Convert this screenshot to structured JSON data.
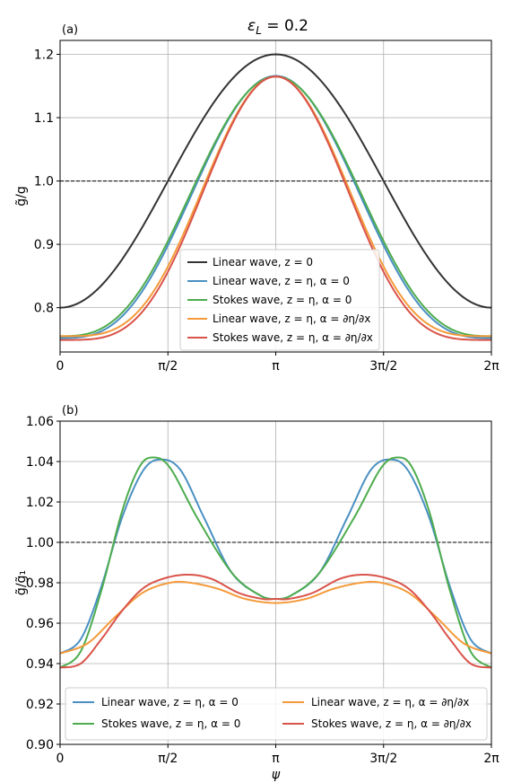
{
  "title": "ε_L = 0.2",
  "colors": {
    "black": "#333333",
    "blue": "#4a90c2",
    "green": "#4dac4d",
    "orange": "#f59a3a",
    "red": "#d9534a"
  },
  "chart_data": [
    {
      "type": "line",
      "panel_label": "(a)",
      "ylabel": "g̃/g",
      "xlabel": "",
      "xlim": [
        0,
        6.2832
      ],
      "ylim": [
        0.73,
        1.222
      ],
      "x_ticks": [
        0,
        1.5708,
        3.1416,
        4.7124,
        6.2832
      ],
      "x_tick_labels": [
        "0",
        "π/2",
        "π",
        "3π/2",
        "2π"
      ],
      "y_ticks": [
        0.8,
        0.9,
        1.0,
        1.1,
        1.2
      ],
      "y_tick_labels": [
        "0.8",
        "0.9",
        "1.0",
        "1.1",
        "1.2"
      ],
      "grid": true,
      "reference_line": 1.0,
      "legend_position": "lower-center",
      "legend_columns": 1,
      "series": [
        {
          "name": "Linear wave, z = 0",
          "color_key": "black",
          "model": "linear0"
        },
        {
          "name": "Linear wave, z = η, α = 0",
          "color_key": "blue",
          "model": "linA"
        },
        {
          "name": "Stokes wave, z = η, α = 0",
          "color_key": "green",
          "model": "stokesA"
        },
        {
          "name": "Linear wave, z = η, α = ∂η/∂x",
          "color_key": "orange",
          "model": "linB"
        },
        {
          "name": "Stokes wave, z = η, α = ∂η/∂x",
          "color_key": "red",
          "model": "stokesB"
        }
      ]
    },
    {
      "type": "line",
      "panel_label": "(b)",
      "ylabel": "g̃/g̃₁",
      "xlabel": "ψ",
      "xlim": [
        0,
        6.2832
      ],
      "ylim": [
        0.9,
        1.06
      ],
      "x_ticks": [
        0,
        1.5708,
        3.1416,
        4.7124,
        6.2832
      ],
      "x_tick_labels": [
        "0",
        "π/2",
        "π",
        "3π/2",
        "2π"
      ],
      "y_ticks": [
        0.9,
        0.92,
        0.94,
        0.96,
        0.98,
        1.0,
        1.02,
        1.04,
        1.06
      ],
      "y_tick_labels": [
        "0.90",
        "0.92",
        "0.94",
        "0.96",
        "0.98",
        "1.00",
        "1.02",
        "1.04",
        "1.06"
      ],
      "grid": true,
      "reference_line": 1.0,
      "legend_position": "lower-center",
      "legend_columns": 2,
      "series": [
        {
          "name": "Linear wave, z = η, α = 0",
          "color_key": "blue",
          "model": "linA",
          "x": [
            0,
            0.3,
            0.6,
            0.9,
            1.2,
            1.45,
            1.75,
            2.1,
            2.5,
            2.9,
            3.1416,
            3.38,
            3.78,
            4.18,
            4.53,
            4.83,
            5.08,
            5.38,
            5.68,
            5.98,
            6.2832
          ],
          "y": [
            0.945,
            0.952,
            0.978,
            1.012,
            1.035,
            1.041,
            1.036,
            1.012,
            0.985,
            0.974,
            0.972,
            0.974,
            0.985,
            1.012,
            1.036,
            1.041,
            1.035,
            1.012,
            0.978,
            0.952,
            0.945
          ]
        },
        {
          "name": "Stokes wave, z = η, α = 0",
          "color_key": "green",
          "model": "stokesA",
          "x": [
            0,
            0.3,
            0.6,
            0.9,
            1.15,
            1.35,
            1.6,
            2.0,
            2.5,
            2.9,
            3.1416,
            3.38,
            3.78,
            4.28,
            4.68,
            4.93,
            5.13,
            5.38,
            5.68,
            5.98,
            6.2832
          ],
          "y": [
            0.938,
            0.946,
            0.976,
            1.015,
            1.037,
            1.042,
            1.037,
            1.012,
            0.985,
            0.974,
            0.972,
            0.974,
            0.985,
            1.012,
            1.037,
            1.042,
            1.037,
            1.015,
            0.976,
            0.946,
            0.938
          ]
        },
        {
          "name": "Linear wave, z = η, α = ∂η/∂x",
          "color_key": "orange",
          "model": "linB",
          "x": [
            0,
            0.4,
            0.8,
            1.2,
            1.6,
            1.9,
            2.3,
            2.7,
            3.1416,
            3.58,
            3.98,
            4.38,
            4.68,
            5.08,
            5.48,
            5.88,
            6.2832
          ],
          "y": [
            0.945,
            0.95,
            0.963,
            0.975,
            0.98,
            0.98,
            0.977,
            0.972,
            0.97,
            0.972,
            0.977,
            0.98,
            0.98,
            0.975,
            0.963,
            0.95,
            0.945
          ]
        },
        {
          "name": "Stokes wave, z = η, α = ∂η/∂x",
          "color_key": "red",
          "model": "stokesB",
          "x": [
            0,
            0.3,
            0.6,
            0.9,
            1.2,
            1.5,
            1.85,
            2.2,
            2.6,
            2.95,
            3.1416,
            3.33,
            3.68,
            4.08,
            4.43,
            4.78,
            5.08,
            5.38,
            5.68,
            5.98,
            6.2832
          ],
          "y": [
            0.938,
            0.94,
            0.952,
            0.966,
            0.977,
            0.982,
            0.984,
            0.982,
            0.975,
            0.972,
            0.972,
            0.972,
            0.975,
            0.982,
            0.984,
            0.982,
            0.977,
            0.966,
            0.952,
            0.94,
            0.938
          ]
        }
      ]
    }
  ]
}
